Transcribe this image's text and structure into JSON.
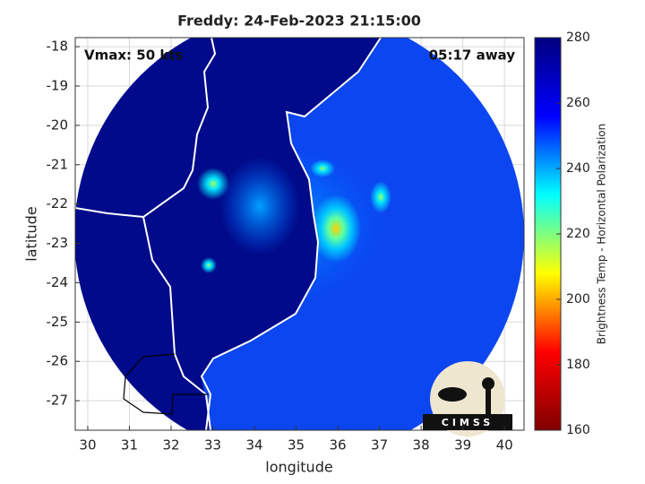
{
  "chart_data": {
    "type": "map",
    "title": "Freddy: 24-Feb-2023 21:15:00",
    "annotations": [
      "Vmax: 50 kts",
      "05:17 away"
    ],
    "xlabel": "longitude",
    "ylabel": "latitude",
    "xlim": [
      29.7,
      40.47
    ],
    "ylim": [
      -27.75,
      -17.77
    ],
    "xticks": [
      30,
      31,
      32,
      33,
      34,
      35,
      36,
      37,
      38,
      39,
      40
    ],
    "yticks": [
      -18,
      -19,
      -20,
      -21,
      -22,
      -23,
      -24,
      -25,
      -26,
      -27
    ],
    "grid": true,
    "colorbar": {
      "label": "Brightness Temp - Horizontal Polarization",
      "clim": [
        160,
        280
      ],
      "ticks": [
        160,
        180,
        200,
        220,
        240,
        260,
        280
      ],
      "colors": [
        "#800000",
        "#ff0000",
        "#ffff00",
        "#00ffff",
        "#0000ff",
        "#00007f"
      ]
    },
    "logo": "CIMSS"
  }
}
